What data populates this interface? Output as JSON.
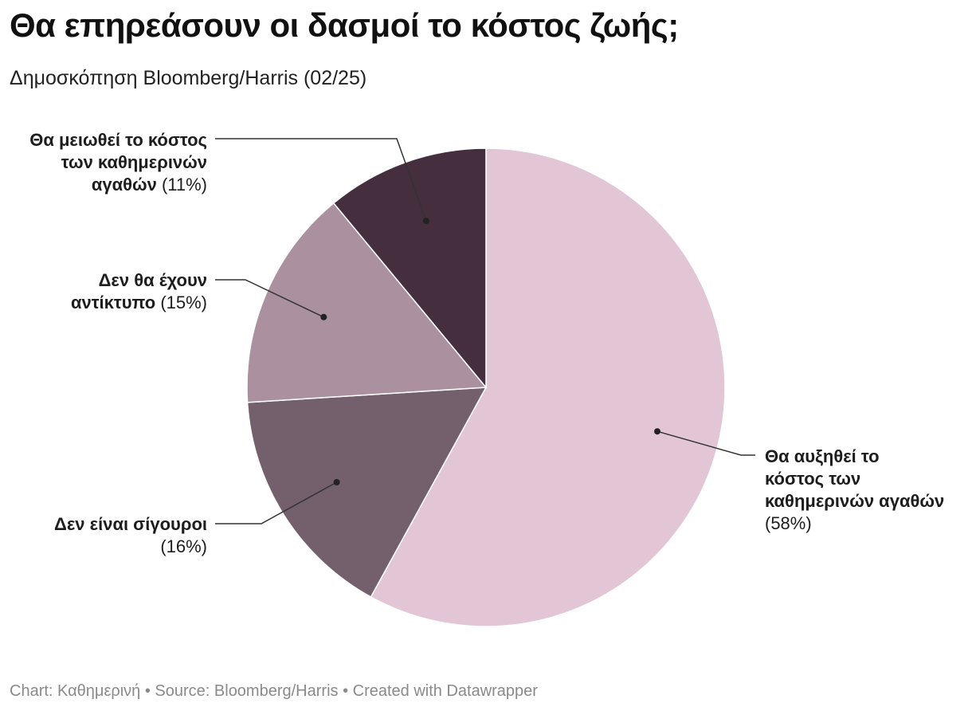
{
  "header": {
    "title": "Θα επηρεάσουν οι δασμοί το κόστος ζωής;",
    "subtitle": "Δημοσκόπηση Bloomberg/Harris (02/25)"
  },
  "chart_data": {
    "type": "pie",
    "title": "Θα επηρεάσουν οι δασμοί το κόστος ζωής;",
    "subtitle": "Δημοσκόπηση Bloomberg/Harris (02/25)",
    "slices": [
      {
        "label": "Θα αυξηθεί το κόστος των καθημερινών αγαθών",
        "value": 58,
        "pct_text": "(58%)",
        "color": "#e2c6d6",
        "label_lines": [
          "Θα αυξηθεί το",
          "κόστος των",
          "καθημερινών αγαθών"
        ]
      },
      {
        "label": "Δεν είναι σίγουροι",
        "value": 16,
        "pct_text": "(16%)",
        "color": "#745f6d",
        "label_lines": [
          "Δεν είναι σίγουροι"
        ]
      },
      {
        "label": "Δεν θα έχουν αντίκτυπο",
        "value": 15,
        "pct_text": "(15%)",
        "color": "#ab909f",
        "label_lines": [
          "Δεν θα έχουν",
          "αντίκτυπο"
        ]
      },
      {
        "label": "Θα μειωθεί το κόστος των καθημερινών αγαθών",
        "value": 11,
        "pct_text": "(11%)",
        "color": "#452e3e",
        "label_lines": [
          "Θα μειωθεί το κόστος",
          "των καθημερινών",
          "αγαθών"
        ]
      }
    ]
  },
  "footer": {
    "credit": "Chart: Καθημερινή • Source: Bloomberg/Harris • Created with Datawrapper"
  }
}
